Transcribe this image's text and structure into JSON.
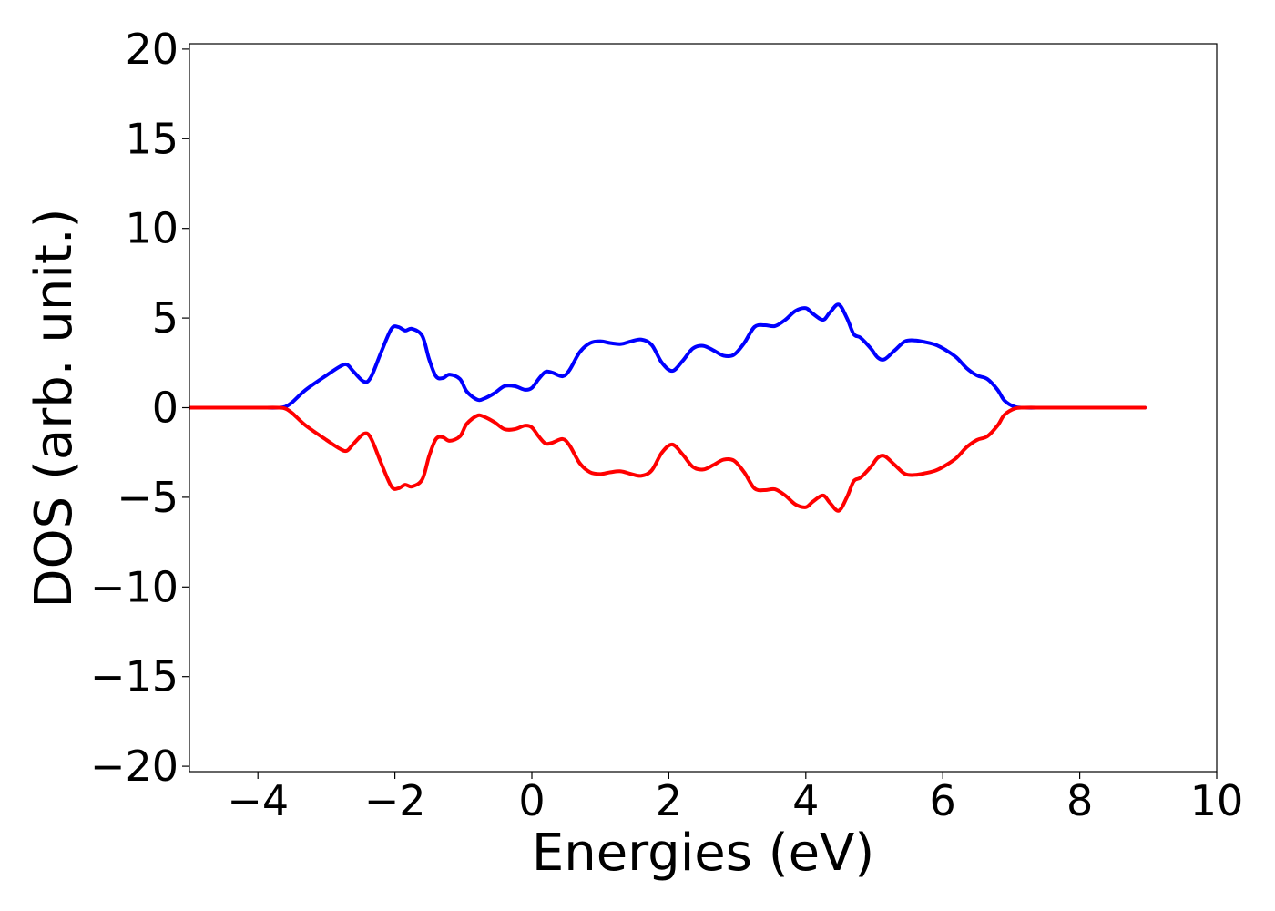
{
  "chart_data": {
    "type": "line",
    "xlabel": "Energies (eV)",
    "ylabel": "DOS (arb. unit.)",
    "xlim": [
      -5,
      10
    ],
    "ylim": [
      -20.3,
      20.3
    ],
    "xticks": [
      -4,
      -2,
      0,
      2,
      4,
      6,
      8,
      10
    ],
    "yticks": [
      -20,
      -15,
      -10,
      -5,
      0,
      5,
      10,
      15,
      20
    ],
    "xtick_labels": [
      "−4",
      "−2",
      "0",
      "2",
      "4",
      "6",
      "8",
      "10"
    ],
    "ytick_labels": [
      "−20",
      "−15",
      "−10",
      "−5",
      "0",
      "5",
      "10",
      "15",
      "20"
    ],
    "grid": false,
    "legend": "none",
    "series": [
      {
        "color": "#0000ff",
        "x": [
          -5.0,
          -4.5,
          -4.0,
          -3.7,
          -3.6,
          -3.5,
          -3.3,
          -3.0,
          -2.8,
          -2.7,
          -2.6,
          -2.45,
          -2.35,
          -2.2,
          -2.05,
          -1.95,
          -1.85,
          -1.75,
          -1.6,
          -1.5,
          -1.4,
          -1.3,
          -1.2,
          -1.05,
          -0.95,
          -0.8,
          -0.7,
          -0.55,
          -0.4,
          -0.25,
          -0.1,
          0.0,
          0.1,
          0.2,
          0.3,
          0.45,
          0.55,
          0.7,
          0.85,
          1.0,
          1.15,
          1.3,
          1.45,
          1.6,
          1.75,
          1.9,
          2.05,
          2.2,
          2.35,
          2.5,
          2.65,
          2.8,
          2.95,
          3.1,
          3.25,
          3.4,
          3.55,
          3.7,
          3.85,
          4.0,
          4.1,
          4.25,
          4.35,
          4.48,
          4.6,
          4.7,
          4.8,
          4.95,
          5.05,
          5.15,
          5.3,
          5.45,
          5.6,
          5.75,
          5.9,
          6.05,
          6.2,
          6.35,
          6.5,
          6.65,
          6.8,
          6.9,
          7.05,
          7.2,
          7.5,
          8.0,
          8.5,
          8.95
        ],
        "y": [
          0,
          0,
          0,
          0,
          0.05,
          0.3,
          1.0,
          1.8,
          2.3,
          2.4,
          2.0,
          1.45,
          1.7,
          3.1,
          4.4,
          4.5,
          4.3,
          4.4,
          4.0,
          2.7,
          1.75,
          1.65,
          1.85,
          1.6,
          0.9,
          0.45,
          0.5,
          0.8,
          1.2,
          1.2,
          1.0,
          1.1,
          1.6,
          2.0,
          1.95,
          1.75,
          2.1,
          3.1,
          3.6,
          3.7,
          3.6,
          3.55,
          3.7,
          3.8,
          3.5,
          2.5,
          2.05,
          2.6,
          3.3,
          3.45,
          3.2,
          2.9,
          2.95,
          3.6,
          4.5,
          4.6,
          4.55,
          4.9,
          5.4,
          5.55,
          5.25,
          4.9,
          5.3,
          5.75,
          5.0,
          4.1,
          3.9,
          3.3,
          2.8,
          2.7,
          3.2,
          3.7,
          3.75,
          3.65,
          3.5,
          3.2,
          2.8,
          2.2,
          1.8,
          1.6,
          1.0,
          0.4,
          0.05,
          0,
          0,
          0,
          0,
          0
        ]
      },
      {
        "color": "#ff0000",
        "x": [
          -5.0,
          -4.5,
          -4.0,
          -3.7,
          -3.6,
          -3.5,
          -3.3,
          -3.0,
          -2.8,
          -2.7,
          -2.6,
          -2.45,
          -2.35,
          -2.2,
          -2.05,
          -1.95,
          -1.85,
          -1.75,
          -1.6,
          -1.5,
          -1.4,
          -1.3,
          -1.2,
          -1.05,
          -0.95,
          -0.8,
          -0.7,
          -0.55,
          -0.4,
          -0.25,
          -0.1,
          0.0,
          0.1,
          0.2,
          0.3,
          0.45,
          0.55,
          0.7,
          0.85,
          1.0,
          1.15,
          1.3,
          1.45,
          1.6,
          1.75,
          1.9,
          2.05,
          2.2,
          2.35,
          2.5,
          2.65,
          2.8,
          2.95,
          3.1,
          3.25,
          3.4,
          3.55,
          3.7,
          3.85,
          4.0,
          4.1,
          4.25,
          4.35,
          4.48,
          4.6,
          4.7,
          4.8,
          4.95,
          5.05,
          5.15,
          5.3,
          5.45,
          5.6,
          5.75,
          5.9,
          6.05,
          6.2,
          6.35,
          6.5,
          6.65,
          6.8,
          6.9,
          7.05,
          7.2,
          7.5,
          8.0,
          8.5,
          8.95
        ],
        "y": [
          0,
          0,
          0,
          0,
          -0.05,
          -0.3,
          -1.0,
          -1.8,
          -2.3,
          -2.4,
          -2.0,
          -1.45,
          -1.7,
          -3.1,
          -4.4,
          -4.5,
          -4.3,
          -4.4,
          -4.0,
          -2.7,
          -1.75,
          -1.65,
          -1.85,
          -1.6,
          -0.9,
          -0.45,
          -0.5,
          -0.8,
          -1.2,
          -1.2,
          -1.0,
          -1.1,
          -1.6,
          -2.0,
          -1.95,
          -1.75,
          -2.1,
          -3.1,
          -3.6,
          -3.7,
          -3.6,
          -3.55,
          -3.7,
          -3.8,
          -3.5,
          -2.5,
          -2.05,
          -2.6,
          -3.3,
          -3.45,
          -3.2,
          -2.9,
          -2.95,
          -3.6,
          -4.5,
          -4.6,
          -4.55,
          -4.9,
          -5.4,
          -5.55,
          -5.25,
          -4.9,
          -5.3,
          -5.75,
          -5.0,
          -4.1,
          -3.9,
          -3.3,
          -2.8,
          -2.7,
          -3.2,
          -3.7,
          -3.75,
          -3.65,
          -3.5,
          -3.2,
          -2.8,
          -2.2,
          -1.8,
          -1.6,
          -1.0,
          -0.4,
          -0.05,
          0,
          0,
          0,
          0,
          0
        ]
      }
    ]
  }
}
